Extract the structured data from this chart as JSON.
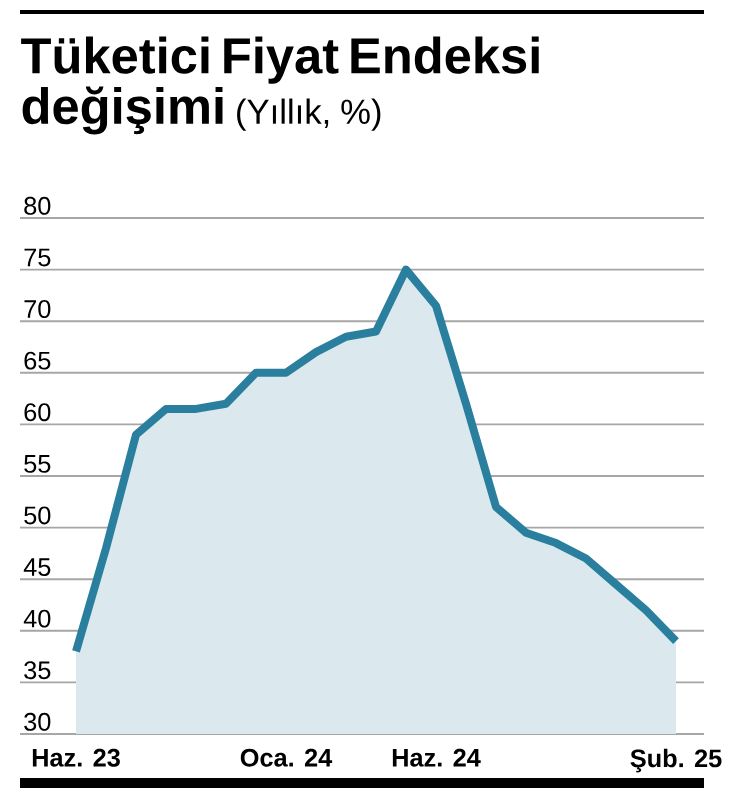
{
  "chart_data": {
    "type": "area",
    "title": "Tüketici Fiyat Endeksi değişimi",
    "subtitle": "(Yıllık, %)",
    "categories": [
      "Haz. 23",
      null,
      null,
      null,
      null,
      null,
      null,
      "Oca. 24",
      null,
      null,
      null,
      null,
      "Haz. 24",
      null,
      null,
      null,
      null,
      null,
      null,
      null,
      "Şub. 25"
    ],
    "series": [
      {
        "color": "#2a7f9e",
        "values": [
          38,
          48,
          59,
          61.5,
          61.5,
          62,
          65,
          65,
          67,
          68.5,
          69,
          75,
          71.5,
          62,
          52,
          49.5,
          48.5,
          47,
          44.5,
          42,
          39
        ]
      }
    ],
    "ylim": [
      30,
      80
    ],
    "yticks": [
      30,
      35,
      40,
      45,
      50,
      55,
      60,
      65,
      70,
      75,
      80
    ],
    "grid": "y",
    "marker": "none",
    "line_style": "solid"
  }
}
